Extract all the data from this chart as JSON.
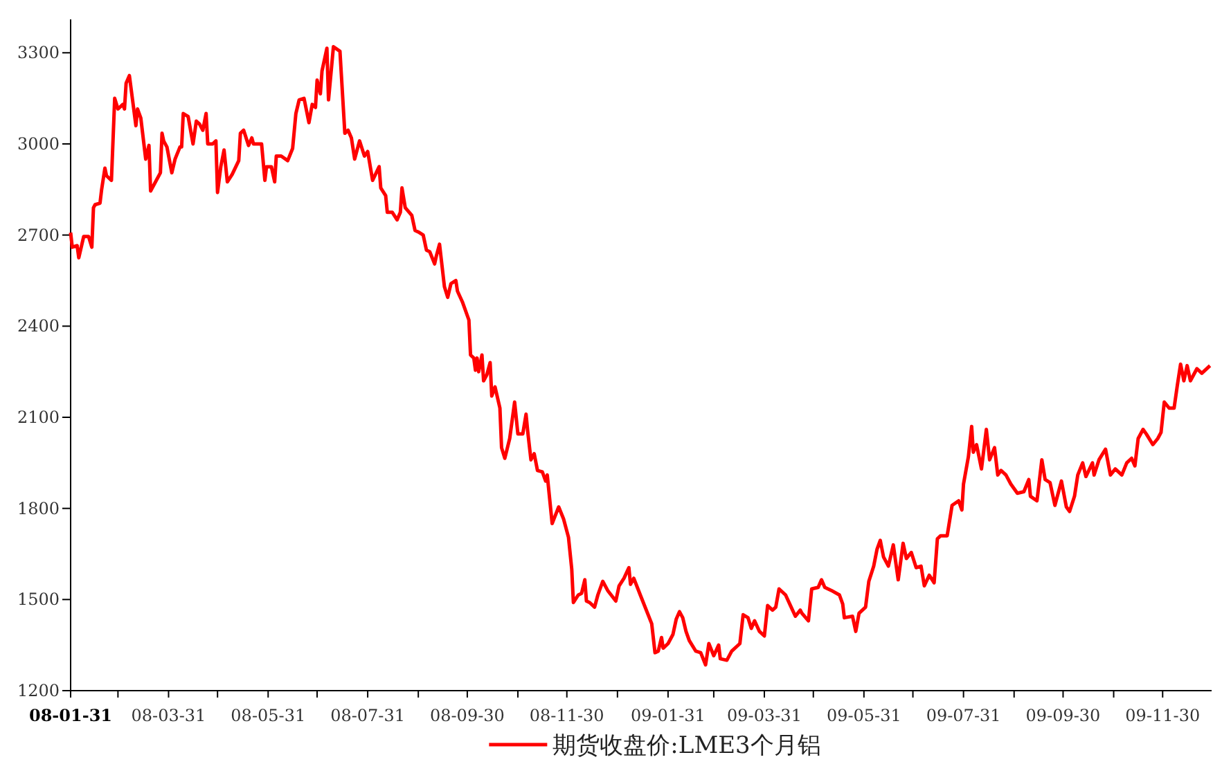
{
  "chart_data": {
    "type": "line",
    "x": [
      "2008-01-31",
      "2008-02-01",
      "2008-02-04",
      "2008-02-05",
      "2008-02-08",
      "2008-02-11",
      "2008-02-13",
      "2008-02-14",
      "2008-02-15",
      "2008-02-18",
      "2008-02-19",
      "2008-02-21",
      "2008-02-22",
      "2008-02-25",
      "2008-02-27",
      "2008-02-29",
      "2008-03-03",
      "2008-03-04",
      "2008-03-05",
      "2008-03-07",
      "2008-03-11",
      "2008-03-12",
      "2008-03-14",
      "2008-03-17",
      "2008-03-19",
      "2008-03-20",
      "2008-03-26",
      "2008-03-27",
      "2008-03-28",
      "2008-03-30",
      "2008-04-02",
      "2008-04-04",
      "2008-04-07",
      "2008-04-08",
      "2008-04-09",
      "2008-04-12",
      "2008-04-15",
      "2008-04-17",
      "2008-04-19",
      "2008-04-21",
      "2008-04-23",
      "2008-04-24",
      "2008-04-27",
      "2008-04-29",
      "2008-04-30",
      "2008-05-02",
      "2008-05-04",
      "2008-05-06",
      "2008-05-09",
      "2008-05-13",
      "2008-05-14",
      "2008-05-16",
      "2008-05-19",
      "2008-05-21",
      "2008-05-22",
      "2008-05-27",
      "2008-05-29",
      "2008-05-30",
      "2008-06-02",
      "2008-06-04",
      "2008-06-05",
      "2008-06-08",
      "2008-06-12",
      "2008-06-15",
      "2008-06-17",
      "2008-06-19",
      "2008-06-22",
      "2008-06-25",
      "2008-06-27",
      "2008-06-29",
      "2008-06-30",
      "2008-07-02",
      "2008-07-03",
      "2008-07-06",
      "2008-07-07",
      "2008-07-10",
      "2008-07-14",
      "2008-07-17",
      "2008-07-19",
      "2008-07-21",
      "2008-07-23",
      "2008-07-26",
      "2008-07-29",
      "2008-07-31",
      "2008-08-03",
      "2008-08-07",
      "2008-08-08",
      "2008-08-11",
      "2008-08-12",
      "2008-08-15",
      "2008-08-18",
      "2008-08-20",
      "2008-08-21",
      "2008-08-23",
      "2008-08-27",
      "2008-08-29",
      "2008-08-31",
      "2008-09-03",
      "2008-09-05",
      "2008-09-07",
      "2008-09-10",
      "2008-09-11",
      "2008-09-13",
      "2008-09-16",
      "2008-09-18",
      "2008-09-20",
      "2008-09-23",
      "2008-09-24",
      "2008-09-27",
      "2008-10-01",
      "2008-10-02",
      "2008-10-04",
      "2008-10-05",
      "2008-10-06",
      "2008-10-07",
      "2008-10-09",
      "2008-10-10",
      "2008-10-12",
      "2008-10-14",
      "2008-10-15",
      "2008-10-17",
      "2008-10-20",
      "2008-10-21",
      "2008-10-23",
      "2008-10-26",
      "2008-10-29",
      "2008-10-31",
      "2008-11-03",
      "2008-11-05",
      "2008-11-06",
      "2008-11-08",
      "2008-11-10",
      "2008-11-12",
      "2008-11-15",
      "2008-11-17",
      "2008-11-18",
      "2008-11-21",
      "2008-11-25",
      "2008-11-28",
      "2008-12-01",
      "2008-12-03",
      "2008-12-04",
      "2008-12-07",
      "2008-12-09",
      "2008-12-11",
      "2008-12-12",
      "2008-12-14",
      "2008-12-17",
      "2008-12-19",
      "2008-12-22",
      "2008-12-25",
      "2008-12-30",
      "2009-01-01",
      "2009-01-04",
      "2009-01-07",
      "2009-01-08",
      "2009-01-10",
      "2009-01-14",
      "2009-01-21",
      "2009-01-23",
      "2009-01-25",
      "2009-01-27",
      "2009-01-28",
      "2009-01-31",
      "2009-02-03",
      "2009-02-05",
      "2009-02-07",
      "2009-02-09",
      "2009-02-11",
      "2009-02-13",
      "2009-02-17",
      "2009-02-20",
      "2009-02-23",
      "2009-02-25",
      "2009-02-28",
      "2009-03-03",
      "2009-03-04",
      "2009-03-08",
      "2009-03-11",
      "2009-03-16",
      "2009-03-18",
      "2009-03-21",
      "2009-03-23",
      "2009-03-25",
      "2009-03-28",
      "2009-03-31",
      "2009-04-02",
      "2009-04-05",
      "2009-04-07",
      "2009-04-09",
      "2009-04-13",
      "2009-04-16",
      "2009-04-19",
      "2009-04-22",
      "2009-04-23",
      "2009-04-27",
      "2009-04-29",
      "2009-05-03",
      "2009-05-05",
      "2009-05-07",
      "2009-05-11",
      "2009-05-16",
      "2009-05-18",
      "2009-05-19",
      "2009-05-24",
      "2009-05-26",
      "2009-05-28",
      "2009-06-01",
      "2009-06-03",
      "2009-06-06",
      "2009-06-08",
      "2009-06-10",
      "2009-06-12",
      "2009-06-15",
      "2009-06-18",
      "2009-06-21",
      "2009-06-24",
      "2009-06-26",
      "2009-06-29",
      "2009-07-02",
      "2009-07-05",
      "2009-07-07",
      "2009-07-10",
      "2009-07-13",
      "2009-07-15",
      "2009-07-17",
      "2009-07-21",
      "2009-07-24",
      "2009-07-28",
      "2009-07-30",
      "2009-07-31",
      "2009-08-03",
      "2009-08-05",
      "2009-08-06",
      "2009-08-08",
      "2009-08-11",
      "2009-08-14",
      "2009-08-16",
      "2009-08-19",
      "2009-08-21",
      "2009-08-23",
      "2009-08-26",
      "2009-08-29",
      "2009-09-02",
      "2009-09-06",
      "2009-09-09",
      "2009-09-10",
      "2009-09-14",
      "2009-09-17",
      "2009-09-19",
      "2009-09-22",
      "2009-09-25",
      "2009-09-29",
      "2009-10-02",
      "2009-10-04",
      "2009-10-07",
      "2009-10-09",
      "2009-10-12",
      "2009-10-14",
      "2009-10-18",
      "2009-10-19",
      "2009-10-22",
      "2009-10-26",
      "2009-10-29",
      "2009-11-01",
      "2009-11-05",
      "2009-11-08",
      "2009-11-11",
      "2009-11-13",
      "2009-11-15",
      "2009-11-18",
      "2009-11-20",
      "2009-11-24",
      "2009-11-27",
      "2009-11-29",
      "2009-12-01",
      "2009-12-04",
      "2009-12-07",
      "2009-12-09",
      "2009-12-11",
      "2009-12-13",
      "2009-12-15",
      "2009-12-17",
      "2009-12-21",
      "2009-12-24",
      "2009-12-29"
    ],
    "series": [
      {
        "name": "期货收盘价:LME3个月铝",
        "color": "#ff0000",
        "values": [
          2708,
          2660,
          2665,
          2625,
          2695,
          2695,
          2660,
          2790,
          2800,
          2805,
          2850,
          2920,
          2895,
          2880,
          3150,
          3115,
          3130,
          3115,
          3200,
          3225,
          3060,
          3115,
          3085,
          2950,
          2995,
          2845,
          2905,
          3035,
          3010,
          2990,
          2905,
          2950,
          2990,
          2990,
          3100,
          3090,
          3000,
          3075,
          3065,
          3045,
          3100,
          3000,
          3000,
          3010,
          2840,
          2925,
          2980,
          2875,
          2900,
          2945,
          3035,
          3045,
          2995,
          3020,
          3000,
          3000,
          2880,
          2925,
          2925,
          2875,
          2960,
          2960,
          2945,
          2985,
          3100,
          3145,
          3150,
          3070,
          3130,
          3120,
          3210,
          3165,
          3240,
          3315,
          3145,
          3320,
          3305,
          3035,
          3045,
          3020,
          2950,
          3010,
          2960,
          2975,
          2880,
          2925,
          2855,
          2830,
          2775,
          2775,
          2750,
          2775,
          2855,
          2790,
          2765,
          2715,
          2710,
          2700,
          2650,
          2645,
          2605,
          2630,
          2670,
          2530,
          2495,
          2540,
          2550,
          2515,
          2480,
          2420,
          2305,
          2295,
          2255,
          2295,
          2250,
          2305,
          2220,
          2240,
          2280,
          2170,
          2200,
          2130,
          2000,
          1965,
          2030,
          2150,
          2045,
          2045,
          2110,
          2055,
          1960,
          1980,
          1925,
          1920,
          1890,
          1910,
          1750,
          1805,
          1765,
          1705,
          1600,
          1490,
          1515,
          1520,
          1565,
          1495,
          1490,
          1475,
          1515,
          1560,
          1530,
          1495,
          1545,
          1570,
          1605,
          1550,
          1570,
          1515,
          1420,
          1325,
          1330,
          1375,
          1340,
          1355,
          1385,
          1435,
          1460,
          1440,
          1395,
          1365,
          1330,
          1325,
          1285,
          1355,
          1315,
          1350,
          1305,
          1300,
          1330,
          1355,
          1450,
          1440,
          1405,
          1430,
          1395,
          1380,
          1480,
          1465,
          1475,
          1535,
          1515,
          1480,
          1445,
          1465,
          1455,
          1430,
          1535,
          1540,
          1565,
          1540,
          1530,
          1515,
          1485,
          1440,
          1445,
          1395,
          1455,
          1475,
          1560,
          1610,
          1665,
          1695,
          1640,
          1610,
          1680,
          1565,
          1685,
          1635,
          1655,
          1605,
          1610,
          1545,
          1580,
          1555,
          1700,
          1710,
          1710,
          1810,
          1825,
          1795,
          1880,
          1970,
          2070,
          1985,
          2010,
          1930,
          2060,
          1960,
          2000,
          1910,
          1925,
          1910,
          1880,
          1850,
          1855,
          1895,
          1840,
          1825,
          1960,
          1895,
          1885,
          1810,
          1890,
          1805,
          1790,
          1840,
          1910,
          1950,
          1905,
          1950,
          1910,
          1960,
          1995,
          1910,
          1930,
          1910,
          1950,
          1965,
          1940,
          2030,
          2060,
          2045,
          2010,
          2030,
          2050,
          2150,
          2130,
          2130,
          2205,
          2275,
          2220,
          2270,
          2220,
          2260,
          2245,
          2270
        ]
      }
    ],
    "xlim": [
      "2008-01-31",
      "2009-12-30"
    ],
    "ylim": [
      1200,
      3410
    ],
    "yticks": [
      1200,
      1500,
      1800,
      2100,
      2400,
      2700,
      3000,
      3300
    ],
    "xticks": [
      {
        "value": "2008-01-31",
        "label": "08-01-31"
      },
      {
        "value": "2008-02-29",
        "label": null
      },
      {
        "value": "2008-03-31",
        "label": "08-03-31"
      },
      {
        "value": "2008-04-30",
        "label": null
      },
      {
        "value": "2008-05-31",
        "label": "08-05-31"
      },
      {
        "value": "2008-06-30",
        "label": null
      },
      {
        "value": "2008-07-31",
        "label": "08-07-31"
      },
      {
        "value": "2008-08-31",
        "label": null
      },
      {
        "value": "2008-09-30",
        "label": "08-09-30"
      },
      {
        "value": "2008-10-31",
        "label": null
      },
      {
        "value": "2008-11-30",
        "label": "08-11-30"
      },
      {
        "value": "2008-12-31",
        "label": null
      },
      {
        "value": "2009-01-31",
        "label": "09-01-31"
      },
      {
        "value": "2009-02-28",
        "label": null
      },
      {
        "value": "2009-03-31",
        "label": "09-03-31"
      },
      {
        "value": "2009-04-30",
        "label": null
      },
      {
        "value": "2009-05-31",
        "label": "09-05-31"
      },
      {
        "value": "2009-06-30",
        "label": null
      },
      {
        "value": "2009-07-31",
        "label": "09-07-31"
      },
      {
        "value": "2009-08-31",
        "label": null
      },
      {
        "value": "2009-09-30",
        "label": "09-09-30"
      },
      {
        "value": "2009-10-31",
        "label": null
      },
      {
        "value": "2009-11-30",
        "label": "09-11-30"
      }
    ],
    "legend": "bottom"
  }
}
